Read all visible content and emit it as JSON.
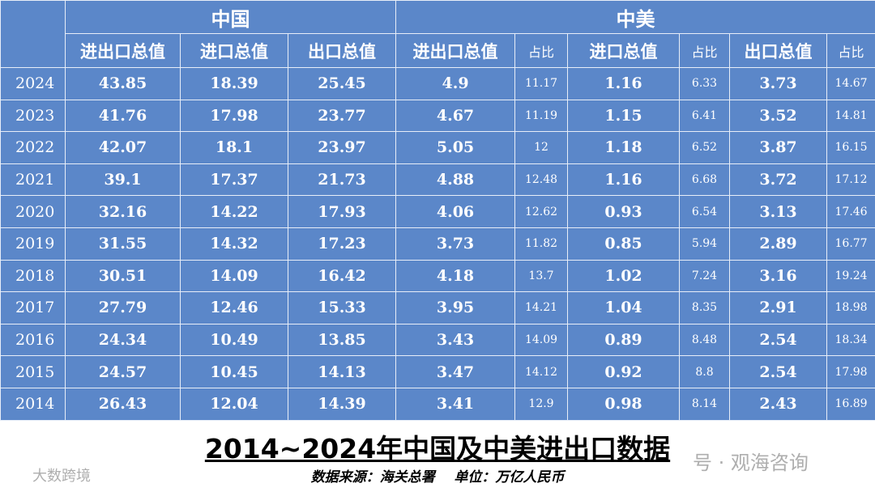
{
  "table": {
    "group_headers": [
      "中国",
      "中美"
    ],
    "columns": [
      "进出口总值",
      "进口总值",
      "出口总值",
      "进出口总值",
      "占比",
      "进口总值",
      "占比",
      "出口总值",
      "占比"
    ],
    "rows": [
      [
        2024,
        43.85,
        18.39,
        25.45,
        4.9,
        11.17,
        1.16,
        6.33,
        3.73,
        14.67
      ],
      [
        2023,
        41.76,
        17.98,
        23.77,
        4.67,
        11.19,
        1.15,
        6.41,
        3.52,
        14.81
      ],
      [
        2022,
        42.07,
        18.1,
        23.97,
        5.05,
        12,
        1.18,
        6.52,
        3.87,
        16.15
      ],
      [
        2021,
        39.1,
        17.37,
        21.73,
        4.88,
        12.48,
        1.16,
        6.68,
        3.72,
        17.12
      ],
      [
        2020,
        32.16,
        14.22,
        17.93,
        4.06,
        12.62,
        0.93,
        6.54,
        3.13,
        17.46
      ],
      [
        2019,
        31.55,
        14.32,
        17.23,
        3.73,
        11.82,
        0.85,
        5.94,
        2.89,
        16.77
      ],
      [
        2018,
        30.51,
        14.09,
        16.42,
        4.18,
        13.7,
        1.02,
        7.24,
        3.16,
        19.24
      ],
      [
        2017,
        27.79,
        12.46,
        15.33,
        3.95,
        14.21,
        1.04,
        8.35,
        2.91,
        18.98
      ],
      [
        2016,
        24.34,
        10.49,
        13.85,
        3.43,
        14.09,
        0.89,
        8.48,
        2.54,
        18.34
      ],
      [
        2015,
        24.57,
        10.45,
        14.13,
        3.47,
        14.12,
        0.92,
        8.8,
        2.54,
        17.98
      ],
      [
        2014,
        26.43,
        12.04,
        14.39,
        3.41,
        12.9,
        0.98,
        8.14,
        2.43,
        16.89
      ]
    ]
  },
  "title": "2014~2024年中国及中美进出口数据",
  "subtitle": "数据来源：海关总署    单位：万亿人民币",
  "watermarks": [
    "大数跨境",
    "号 · 观海咨询"
  ]
}
